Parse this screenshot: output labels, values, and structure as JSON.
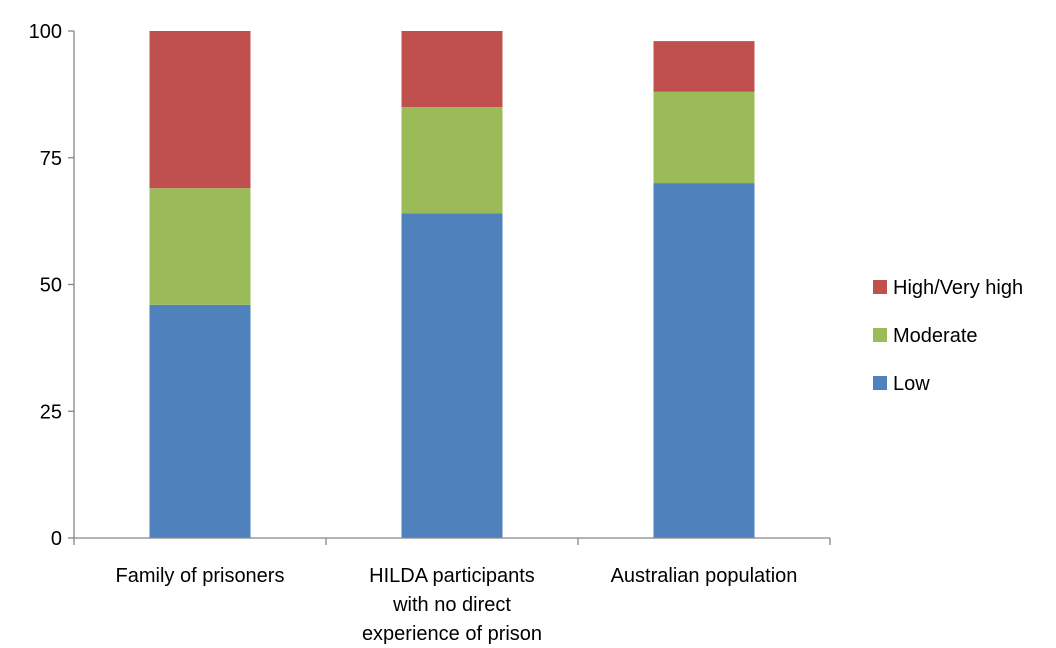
{
  "chart_data": {
    "type": "bar",
    "stacked": true,
    "categories": [
      [
        "Family of prisoners"
      ],
      [
        "HILDA participants",
        "with no direct",
        "experience of prison"
      ],
      [
        "Australian population"
      ]
    ],
    "series": [
      {
        "name": "Low",
        "color": "#4f81bd",
        "values": [
          46,
          64,
          70
        ]
      },
      {
        "name": "Moderate",
        "color": "#9bbb59",
        "values": [
          23,
          21,
          18
        ]
      },
      {
        "name": "High/Very high",
        "color": "#c0504d",
        "values": [
          31,
          15,
          10
        ]
      }
    ],
    "yticks": [
      "0",
      "25",
      "50",
      "75",
      "100"
    ],
    "ylim": [
      0,
      100
    ],
    "grid": false,
    "legend_position": "right",
    "legend_order": [
      "High/Very high",
      "Moderate",
      "Low"
    ],
    "title": "",
    "xlabel": "",
    "ylabel": ""
  }
}
